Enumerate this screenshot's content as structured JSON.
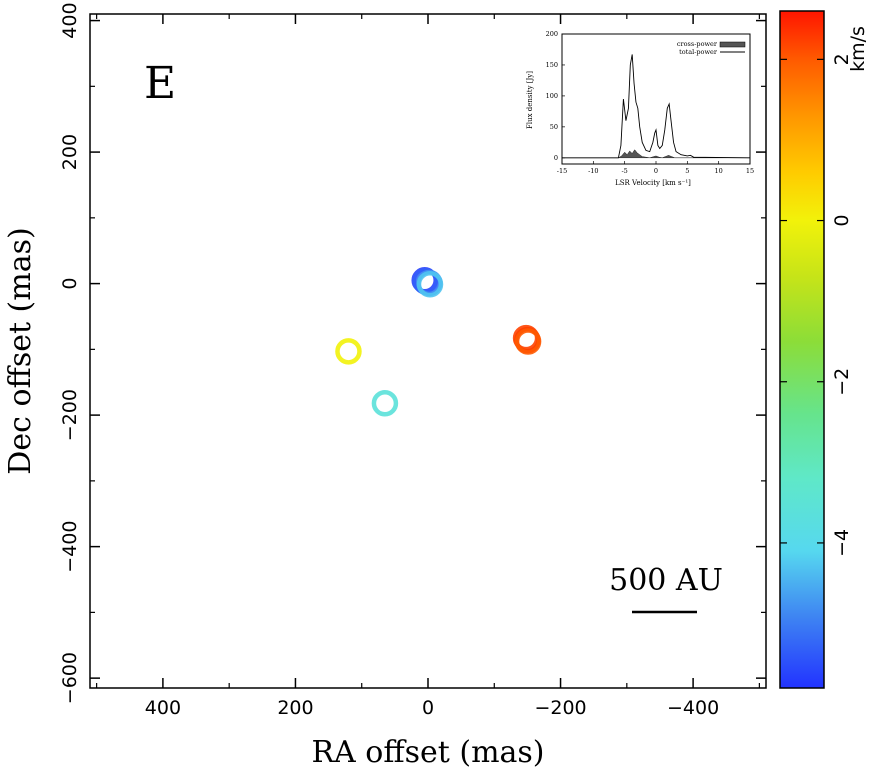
{
  "panel_letter": "E",
  "scale_bar": {
    "label": "500 AU"
  },
  "colorbar": {
    "label": "km/s",
    "range": [
      -5.8,
      2.6
    ],
    "ticks": [
      2,
      0,
      -2,
      -4
    ],
    "tick_labels": [
      "2",
      "0",
      "−2",
      "−4"
    ],
    "stops": [
      {
        "v": -5.8,
        "color": "#2233ff"
      },
      {
        "v": -4.9,
        "color": "#3f86f2"
      },
      {
        "v": -4.1,
        "color": "#56d8ef"
      },
      {
        "v": -3.2,
        "color": "#5fe8c8"
      },
      {
        "v": -2.4,
        "color": "#66e48c"
      },
      {
        "v": -1.5,
        "color": "#8cdd38"
      },
      {
        "v": -0.7,
        "color": "#c6e418"
      },
      {
        "v": 0.0,
        "color": "#f2f20a"
      },
      {
        "v": 0.6,
        "color": "#ffcb00"
      },
      {
        "v": 1.3,
        "color": "#ff9600"
      },
      {
        "v": 2.0,
        "color": "#ff5a00"
      },
      {
        "v": 2.6,
        "color": "#ff1500"
      }
    ]
  },
  "chart_data": [
    {
      "type": "scatter",
      "title": "",
      "xlabel": "RA offset (mas)",
      "ylabel": "Dec offset (mas)",
      "xlim": [
        510,
        -510
      ],
      "ylim": [
        -615,
        410
      ],
      "xticks": [
        400,
        200,
        0,
        -200,
        -400
      ],
      "xtick_labels": [
        "400",
        "200",
        "0",
        "−200",
        "−400"
      ],
      "yticks": [
        400,
        200,
        0,
        -200,
        -400,
        -600
      ],
      "ytick_labels": [
        "400",
        "200",
        "0",
        "−200",
        "−400",
        "−600"
      ],
      "points": [
        {
          "x": 5,
          "y": 5,
          "v": -5.6
        },
        {
          "x": 3,
          "y": 3,
          "v": -5.3
        },
        {
          "x": -2,
          "y": 1,
          "v": -4.8
        },
        {
          "x": -3,
          "y": -1,
          "v": -4.3
        },
        {
          "x": -150,
          "y": -86,
          "v": 2.4
        },
        {
          "x": -148,
          "y": -83,
          "v": 2.2
        },
        {
          "x": -151,
          "y": -88,
          "v": 2.0
        },
        {
          "x": 120,
          "y": -103,
          "v": 0.0
        },
        {
          "x": 65,
          "y": -182,
          "v": -3.6
        }
      ]
    },
    {
      "type": "area",
      "title": "",
      "xlabel": "LSR Velocity [km s⁻¹]",
      "ylabel": "Flux density [Jy]",
      "xlim": [
        -15,
        15
      ],
      "ylim": [
        -10,
        200
      ],
      "xtick_labels": [
        "-15",
        "-10",
        "-5",
        "0",
        "5",
        "10",
        "15"
      ],
      "ytick_labels": [
        "200",
        "150",
        "100",
        "50",
        "0"
      ],
      "legend": "top-right",
      "series": [
        {
          "name": "cross-power",
          "x": [
            -15,
            -6,
            -5.5,
            -5,
            -4.6,
            -4.2,
            -3.8,
            -3.4,
            -3,
            -2.6,
            -2.2,
            -1,
            0,
            0.5,
            1,
            1.5,
            2,
            2.5,
            3,
            4,
            15
          ],
          "y": [
            0,
            0,
            3,
            9,
            5,
            11,
            7,
            13,
            8,
            5,
            2,
            0,
            3,
            1,
            0,
            2,
            4,
            2,
            0,
            0,
            0
          ]
        },
        {
          "name": "total-power",
          "x": [
            -15,
            -8,
            -6,
            -5.6,
            -5.2,
            -4.8,
            -4.4,
            -4.1,
            -3.8,
            -3.5,
            -3.2,
            -2.9,
            -2.6,
            -2.2,
            -1.6,
            -1,
            -0.5,
            -0.2,
            0,
            0.3,
            0.6,
            1,
            1.4,
            1.8,
            2.1,
            2.4,
            2.8,
            3.2,
            4,
            5,
            5.5,
            6,
            15
          ],
          "y": [
            0,
            0,
            0,
            20,
            95,
            60,
            80,
            150,
            167,
            120,
            90,
            80,
            50,
            25,
            12,
            10,
            25,
            40,
            45,
            20,
            15,
            20,
            45,
            80,
            87,
            60,
            25,
            10,
            5,
            3,
            4,
            1,
            0
          ]
        }
      ]
    }
  ]
}
